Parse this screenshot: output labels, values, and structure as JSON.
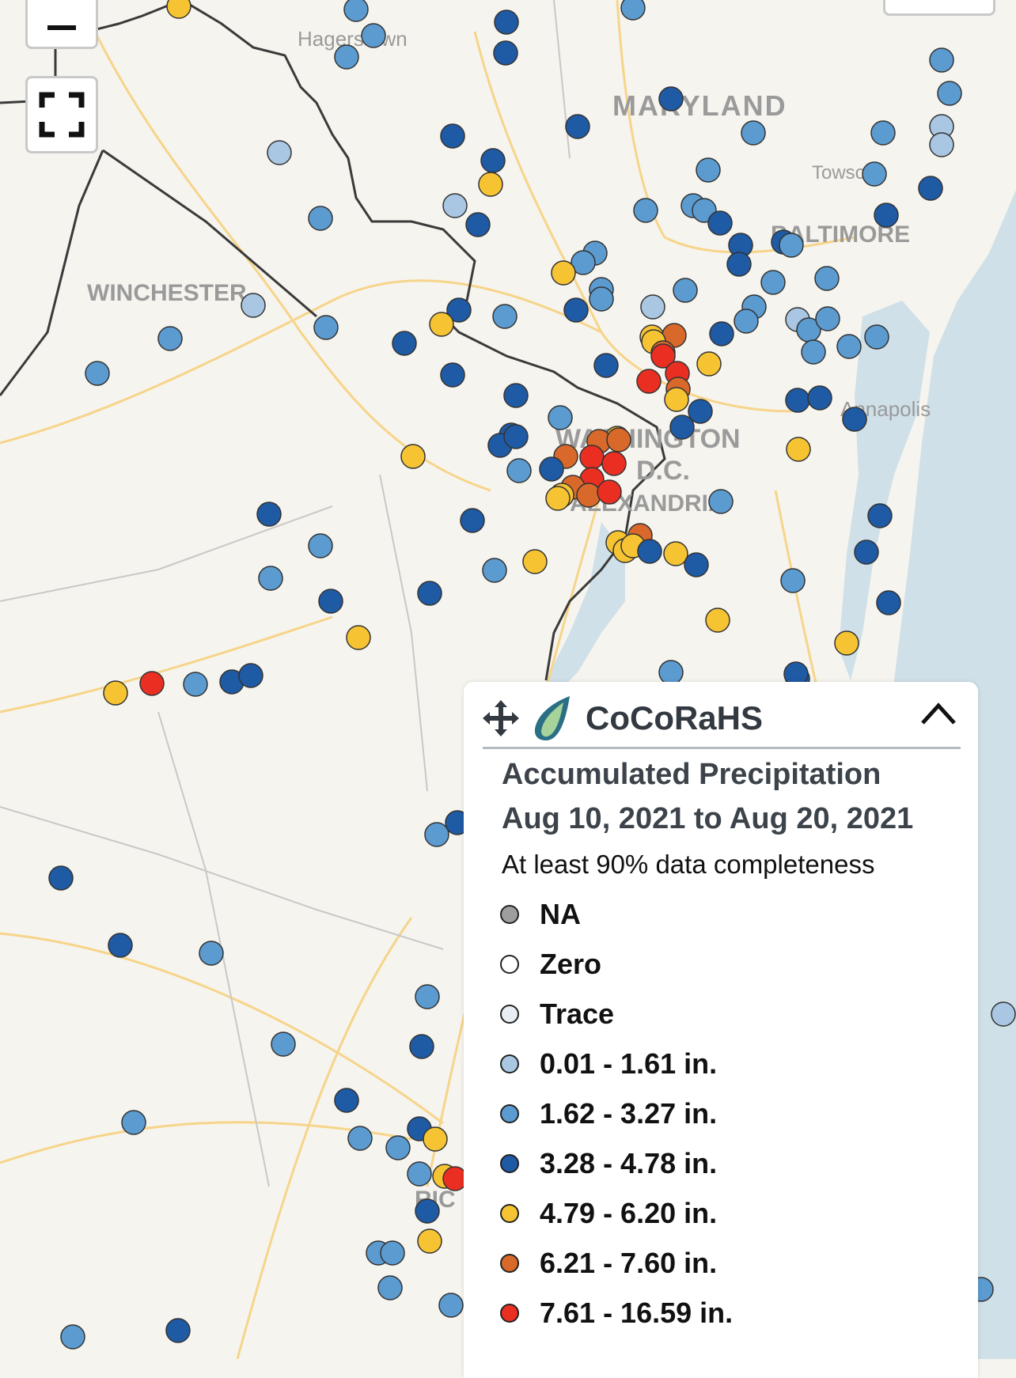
{
  "map": {
    "place_labels": [
      {
        "name": "Hagerstown",
        "kind": "city"
      },
      {
        "name": "MARYLAND",
        "kind": "state"
      },
      {
        "name": "Towson",
        "kind": "city"
      },
      {
        "name": "BALTIMORE",
        "kind": "metro"
      },
      {
        "name": "WINCHESTER",
        "kind": "metro"
      },
      {
        "name": "Annapolis",
        "kind": "city"
      },
      {
        "name": "WASHINGTON",
        "kind": "metro"
      },
      {
        "name": "D.C.",
        "kind": "metro"
      },
      {
        "name": "ALEXANDRIA",
        "kind": "metro"
      },
      {
        "name": "RIC",
        "kind": "metro"
      }
    ],
    "colors": {
      "land": "#f6f4ee",
      "water": "#cfe0e8",
      "roads": "#f6d58a",
      "borders": "#3a3a3a",
      "labels": "#9a9a9a"
    }
  },
  "controls": {
    "zoom_out_label": "−",
    "zoom_out_icon": "minus-icon",
    "fullscreen_icon": "fullscreen-icon"
  },
  "legend": {
    "brand": "CoCoRaHS",
    "title": "Accumulated Precipitation",
    "date_range": "Aug 10, 2021 to Aug 20, 2021",
    "completeness_note": "At least 90% data completeness",
    "move_icon": "move-arrows-icon",
    "logo_icon": "raindrop-logo-icon",
    "collapse_icon": "chevron-up-icon",
    "items": [
      {
        "label": "NA",
        "color": "#9e9e9e"
      },
      {
        "label": "Zero",
        "color": "#ffffff"
      },
      {
        "label": "Trace",
        "color": "#e8eef4"
      },
      {
        "label": "0.01 - 1.61 in.",
        "color": "#a9c7e2"
      },
      {
        "label": "1.62 - 3.27 in.",
        "color": "#5b9bd0"
      },
      {
        "label": "3.28 - 4.78 in.",
        "color": "#1f5aa4"
      },
      {
        "label": "4.79 - 6.20 in.",
        "color": "#f6c433"
      },
      {
        "label": "6.21 - 7.60 in.",
        "color": "#d8692a"
      },
      {
        "label": "7.61 - 16.59 in.",
        "color": "#ea2f22"
      }
    ]
  }
}
